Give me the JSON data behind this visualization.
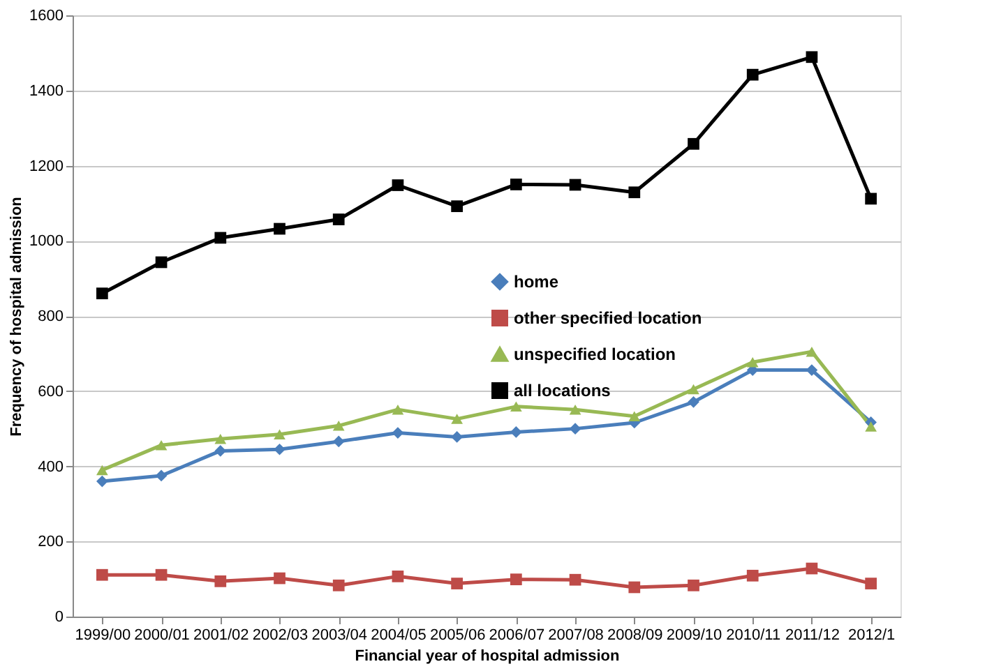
{
  "chart_data": {
    "type": "line",
    "xlabel": "Financial year of hospital admission",
    "ylabel": "Frequency of hospital admission",
    "categories": [
      "1999/00",
      "2000/01",
      "2001/02",
      "2002/03",
      "2003/04",
      "2004/05",
      "2005/06",
      "2006/07",
      "2007/08",
      "2008/09",
      "2009/10",
      "2010/11",
      "2011/12",
      "2012/1"
    ],
    "series": [
      {
        "name": "home",
        "color": "#4a7ebb",
        "marker": "diamond",
        "values": [
          360,
          375,
          441,
          445,
          466,
          489,
          478,
          491,
          500,
          516,
          571,
          656,
          656,
          517
        ]
      },
      {
        "name": "other specified location",
        "color": "#be4b48",
        "marker": "square",
        "values": [
          111,
          111,
          94,
          102,
          83,
          107,
          88,
          99,
          98,
          78,
          83,
          109,
          128,
          88
        ]
      },
      {
        "name": "unspecified location",
        "color": "#98b954",
        "marker": "triangle",
        "values": [
          390,
          456,
          473,
          485,
          508,
          551,
          526,
          559,
          551,
          533,
          605,
          677,
          705,
          506
        ]
      },
      {
        "name": "all locations",
        "color": "#000000",
        "marker": "square",
        "values": [
          860,
          943,
          1008,
          1032,
          1057,
          1148,
          1092,
          1150,
          1149,
          1129,
          1258,
          1442,
          1489,
          1112
        ]
      }
    ],
    "ylim": [
      0,
      1600
    ],
    "yticks": [
      0,
      200,
      400,
      600,
      800,
      1000,
      1200,
      1400,
      1600
    ],
    "grid": "y",
    "legend": "center",
    "line_style": "solid"
  }
}
